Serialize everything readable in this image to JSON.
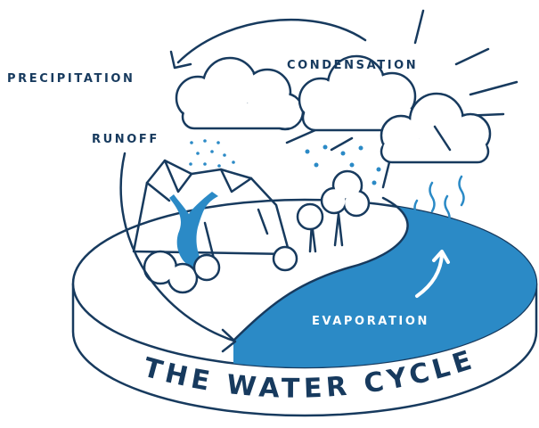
{
  "title": "THE WATER CYCLE",
  "labels": {
    "precipitation": "PRECIPITATION",
    "condensation": "CONDENSATION",
    "runoff": "RUNOFF",
    "evaporation": "EVAPORATION"
  }
}
